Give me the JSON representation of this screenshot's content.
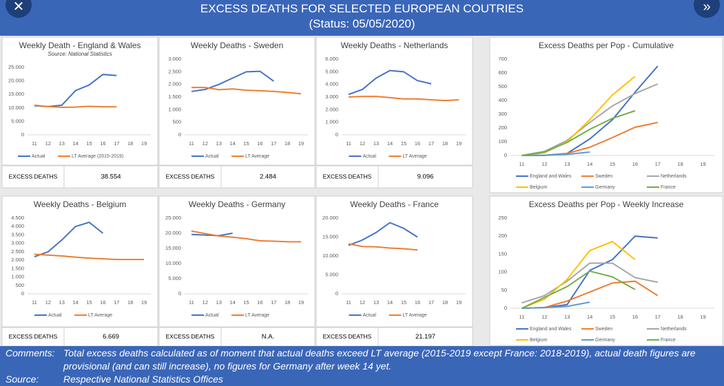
{
  "header": {
    "title": "EXCESS DEATHS FOR SELECTED EUROPEAN COUTRIES",
    "status": "(Status: 05/05/2020)"
  },
  "chart_data": [
    {
      "type": "line",
      "title": "Weekly Death - England & Wales",
      "subtitle": "Source: National Statistics",
      "x": [
        11,
        12,
        13,
        14,
        15,
        16,
        17,
        18,
        19
      ],
      "xlim": [
        10.5,
        19.5
      ],
      "xticks": [
        11,
        12,
        13,
        14,
        15,
        16,
        17,
        18,
        19
      ],
      "ylim": [
        0,
        25000
      ],
      "yticks": [
        0,
        {
          "value": 5000,
          "label": "5.000"
        },
        {
          "value": 10000,
          "label": "10.000"
        },
        {
          "value": 15000,
          "label": "15.000"
        },
        {
          "value": 20000,
          "label": "20.000"
        },
        {
          "value": 25000,
          "label": "25.000"
        }
      ],
      "grid": false,
      "legend": "bottom",
      "series": [
        {
          "name": "Actual",
          "color": "#4472c4",
          "values": [
            10800,
            10500,
            11000,
            16400,
            18500,
            22400,
            22000,
            null,
            null
          ]
        },
        {
          "name": "LT Average (2015-2019)",
          "color": "#ed7d31",
          "values": [
            11000,
            10500,
            10200,
            10300,
            10600,
            10400,
            10400,
            null,
            null
          ]
        }
      ]
    },
    {
      "type": "line",
      "title": "Weekly Deaths - Sweden",
      "x": [
        11,
        12,
        13,
        14,
        15,
        16,
        17,
        18,
        19
      ],
      "xlim": [
        10.5,
        19.5
      ],
      "xticks": [
        11,
        12,
        13,
        14,
        15,
        16,
        17,
        18,
        19
      ],
      "ylim": [
        0,
        3000
      ],
      "yticks": [
        0,
        500,
        {
          "value": 1000,
          "label": "1.000"
        },
        {
          "value": 1500,
          "label": "1.500"
        },
        {
          "value": 2000,
          "label": "2.000"
        },
        {
          "value": 2500,
          "label": "2.500"
        },
        {
          "value": 3000,
          "label": "3.000"
        }
      ],
      "grid": false,
      "legend": "bottom",
      "series": [
        {
          "name": "Actual",
          "color": "#4472c4",
          "values": [
            1720,
            1800,
            2000,
            2250,
            2500,
            2520,
            2130,
            null,
            null
          ]
        },
        {
          "name": "LT Average",
          "color": "#ed7d31",
          "values": [
            1880,
            1880,
            1790,
            1820,
            1770,
            1750,
            1720,
            1680,
            1630
          ]
        }
      ]
    },
    {
      "type": "line",
      "title": "Weekly Deaths - Netherlands",
      "x": [
        11,
        12,
        13,
        14,
        15,
        16,
        17,
        18,
        19
      ],
      "xlim": [
        10.5,
        19.5
      ],
      "xticks": [
        11,
        12,
        13,
        14,
        15,
        16,
        17,
        18,
        19
      ],
      "ylim": [
        0,
        6000
      ],
      "yticks": [
        0,
        {
          "value": 1000,
          "label": "1.000"
        },
        {
          "value": 2000,
          "label": "2.000"
        },
        {
          "value": 3000,
          "label": "3.000"
        },
        {
          "value": 4000,
          "label": "4.000"
        },
        {
          "value": 5000,
          "label": "5.000"
        },
        {
          "value": 6000,
          "label": "6.000"
        }
      ],
      "grid": false,
      "legend": "bottom",
      "series": [
        {
          "name": "Actual",
          "color": "#4472c4",
          "values": [
            3200,
            3600,
            4500,
            5100,
            5000,
            4300,
            4050,
            null,
            null
          ]
        },
        {
          "name": "LT Average",
          "color": "#ed7d31",
          "values": [
            3000,
            3050,
            3050,
            2950,
            2850,
            2850,
            2780,
            2720,
            2780
          ]
        }
      ]
    },
    {
      "type": "line",
      "title": "Excess Deaths per Pop - Cumulative",
      "x": [
        11,
        12,
        13,
        14,
        15,
        16,
        17,
        18,
        19
      ],
      "xlim": [
        10.5,
        19.5
      ],
      "xticks": [
        11,
        12,
        13,
        14,
        15,
        16,
        17,
        18,
        19
      ],
      "ylim": [
        0,
        700
      ],
      "yticks": [
        0,
        100,
        200,
        300,
        400,
        500,
        600,
        700
      ],
      "grid": false,
      "legend": "bottom",
      "series": [
        {
          "name": "England and Wales",
          "color": "#4472c4",
          "values": [
            0,
            2,
            15,
            120,
            260,
            460,
            650,
            null,
            null
          ]
        },
        {
          "name": "Sweden",
          "color": "#ed7d31",
          "values": [
            0,
            0,
            15,
            60,
            130,
            205,
            240,
            null,
            null
          ]
        },
        {
          "name": "Netherlands",
          "color": "#a5a5a5",
          "values": [
            0,
            30,
            110,
            240,
            360,
            450,
            520,
            null,
            null
          ]
        },
        {
          "name": "Belgium",
          "color": "#ffc000",
          "values": [
            0,
            20,
            100,
            260,
            440,
            575,
            null,
            null,
            null
          ]
        },
        {
          "name": "Germany",
          "color": "#5b9bd5",
          "values": [
            0,
            2,
            8,
            25,
            null,
            null,
            null,
            null,
            null
          ]
        },
        {
          "name": "France",
          "color": "#70ad47",
          "values": [
            0,
            25,
            95,
            190,
            270,
            325,
            null,
            null,
            null
          ]
        }
      ]
    },
    {
      "type": "line",
      "title": "Weekly Deaths - Belgium",
      "x": [
        11,
        12,
        13,
        14,
        15,
        16,
        17,
        18,
        19
      ],
      "xlim": [
        10.5,
        19.5
      ],
      "xticks": [
        11,
        12,
        13,
        14,
        15,
        16,
        17,
        18,
        19
      ],
      "ylim": [
        0,
        4500
      ],
      "yticks": [
        0,
        500,
        {
          "value": 1000,
          "label": "1.000"
        },
        {
          "value": 1500,
          "label": "1.500"
        },
        {
          "value": 2000,
          "label": "2.000"
        },
        {
          "value": 2500,
          "label": "2.500"
        },
        {
          "value": 3000,
          "label": "3.000"
        },
        {
          "value": 3500,
          "label": "3.500"
        },
        {
          "value": 4000,
          "label": "4.000"
        },
        {
          "value": 4500,
          "label": "4.500"
        }
      ],
      "grid": false,
      "legend": "bottom",
      "series": [
        {
          "name": "Actual",
          "color": "#4472c4",
          "values": [
            2200,
            2500,
            3200,
            4000,
            4250,
            3600,
            null,
            null,
            null
          ]
        },
        {
          "name": "LT Average",
          "color": "#ed7d31",
          "values": [
            2350,
            2300,
            2250,
            2180,
            2120,
            2080,
            2040,
            2040,
            2040
          ]
        }
      ]
    },
    {
      "type": "line",
      "title": "Weekly Deaths - Germany",
      "x": [
        11,
        12,
        13,
        14,
        15,
        16,
        17,
        18,
        19
      ],
      "xlim": [
        10.5,
        19.5
      ],
      "xticks": [
        11,
        12,
        13,
        14,
        15,
        16,
        17,
        18,
        19
      ],
      "ylim": [
        0,
        25000
      ],
      "yticks": [
        0,
        {
          "value": 5000,
          "label": "5.000"
        },
        {
          "value": 10000,
          "label": "10.000"
        },
        {
          "value": 15000,
          "label": "15.000"
        },
        {
          "value": 20000,
          "label": "20.000"
        },
        {
          "value": 25000,
          "label": "25.000"
        }
      ],
      "grid": false,
      "legend": "bottom",
      "series": [
        {
          "name": "Actual",
          "color": "#4472c4",
          "values": [
            19600,
            19400,
            19200,
            20000,
            null,
            null,
            null,
            null,
            null
          ]
        },
        {
          "name": "LT Average",
          "color": "#ed7d31",
          "values": [
            20700,
            19900,
            19100,
            18700,
            18200,
            17500,
            17400,
            17200,
            17200
          ]
        }
      ]
    },
    {
      "type": "line",
      "title": "Weekly Deaths - France",
      "x": [
        11,
        12,
        13,
        14,
        15,
        16,
        17,
        18,
        19
      ],
      "xlim": [
        10.5,
        19.5
      ],
      "xticks": [
        11,
        12,
        13,
        14,
        15,
        16,
        17,
        18,
        19
      ],
      "ylim": [
        0,
        20000
      ],
      "yticks": [
        0,
        {
          "value": 5000,
          "label": "5.000"
        },
        {
          "value": 10000,
          "label": "10.000"
        },
        {
          "value": 15000,
          "label": "15.000"
        },
        {
          "value": 20000,
          "label": "20.000"
        }
      ],
      "grid": false,
      "legend": "bottom",
      "series": [
        {
          "name": "Actual",
          "color": "#4472c4",
          "values": [
            12800,
            14200,
            16200,
            18800,
            17300,
            15000,
            null,
            null,
            null
          ]
        },
        {
          "name": "LT Average",
          "color": "#ed7d31",
          "values": [
            13200,
            12500,
            12400,
            12100,
            11900,
            11600,
            null,
            null,
            null
          ]
        }
      ]
    },
    {
      "type": "line",
      "title": "Excess Deaths per Pop - Weekly Increase",
      "x": [
        11,
        12,
        13,
        14,
        15,
        16,
        17,
        18,
        19
      ],
      "xlim": [
        10.5,
        19.5
      ],
      "xticks": [
        11,
        12,
        13,
        14,
        15,
        16,
        17,
        18,
        19
      ],
      "ylim": [
        0,
        250
      ],
      "yticks": [
        0,
        50,
        100,
        150,
        200,
        250
      ],
      "grid": false,
      "legend": "bottom",
      "series": [
        {
          "name": "England and Wales",
          "color": "#4472c4",
          "values": [
            0,
            2,
            10,
            105,
            135,
            200,
            195,
            null,
            null
          ]
        },
        {
          "name": "Sweden",
          "color": "#ed7d31",
          "values": [
            0,
            2,
            20,
            45,
            70,
            75,
            35,
            null,
            null
          ]
        },
        {
          "name": "Netherlands",
          "color": "#a5a5a5",
          "values": [
            15,
            35,
            75,
            125,
            125,
            85,
            72,
            null,
            null
          ]
        },
        {
          "name": "Belgium",
          "color": "#ffc000",
          "values": [
            0,
            25,
            80,
            160,
            185,
            135,
            null,
            null,
            null
          ]
        },
        {
          "name": "Germany",
          "color": "#5b9bd5",
          "values": [
            0,
            2,
            5,
            17,
            null,
            null,
            null,
            null,
            null
          ]
        },
        {
          "name": "France",
          "color": "#70ad47",
          "values": [
            0,
            30,
            60,
            103,
            87,
            52,
            null,
            null,
            null
          ]
        }
      ]
    }
  ],
  "excess_deaths": [
    {
      "label": "EXCESS DEATHS",
      "value": "38.554"
    },
    {
      "label": "EXCESS DEATHS",
      "value": "2.484"
    },
    {
      "label": "EXCESS DEATHS",
      "value": "9.096"
    },
    {
      "label": "EXCESS DEATHS",
      "value": "6.669"
    },
    {
      "label": "EXCESS DEATHS",
      "value": "N.A."
    },
    {
      "label": "EXCESS DEATHS",
      "value": "21.197"
    }
  ],
  "footer": {
    "comments_label": "Comments:",
    "comments": "Total excess deaths calculated as of moment that actual deaths exceed LT average (2015-2019 except France: 2018-2019), actual death figures are provisional (and can still increase), no figures for Germany after week  14 yet.",
    "source_label": "Source:",
    "source": "Respective National Statistics Offices"
  }
}
